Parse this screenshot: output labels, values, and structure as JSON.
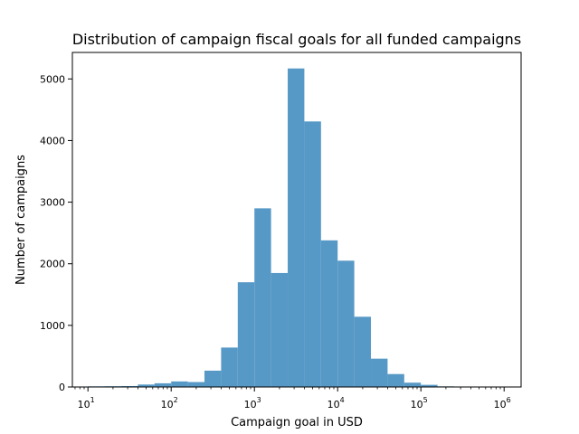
{
  "chart_data": {
    "type": "bar",
    "title": "Distribution of campaign fiscal goals for all funded campaigns",
    "xlabel": "Campaign goal in USD",
    "ylabel": "Number of campaigns",
    "x_scale": "log",
    "xlim": [
      6.5,
      1600000
    ],
    "ylim": [
      0,
      5430
    ],
    "y_ticks": [
      0,
      1000,
      2000,
      3000,
      4000,
      5000
    ],
    "x_ticks": [
      10,
      100,
      1000,
      10000,
      100000,
      1000000
    ],
    "x_tick_labels": [
      {
        "base": "10",
        "exp": "1"
      },
      {
        "base": "10",
        "exp": "2"
      },
      {
        "base": "10",
        "exp": "3"
      },
      {
        "base": "10",
        "exp": "4"
      },
      {
        "base": "10",
        "exp": "5"
      },
      {
        "base": "10",
        "exp": "6"
      }
    ],
    "bin_edges": [
      10,
      15.85,
      25.12,
      39.81,
      63.1,
      100,
      158.5,
      251.2,
      398.1,
      631,
      1000,
      1585,
      2512,
      3981,
      6310,
      10000,
      15849,
      25119,
      39811,
      63096,
      100000,
      158489,
      251189,
      398107,
      630957,
      1000000
    ],
    "values": [
      10,
      12,
      15,
      40,
      60,
      90,
      80,
      265,
      640,
      1700,
      2900,
      1850,
      5170,
      4310,
      2380,
      2050,
      1140,
      460,
      210,
      70,
      35,
      10,
      5,
      5,
      5
    ],
    "bar_color": "#5799c6",
    "grid": false,
    "legend": "none"
  }
}
